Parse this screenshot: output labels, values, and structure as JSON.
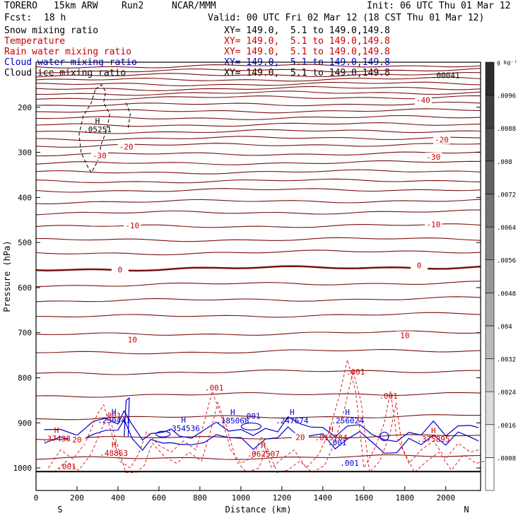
{
  "header": {
    "model": "TORERO",
    "resolution": "15km ARW",
    "run": "Run2",
    "org": "NCAR/MMM",
    "init": "Init: 06 UTC Thu 01 Mar 12",
    "fcst_label": "Fcst:",
    "fcst_value": "18 h",
    "valid": "Valid: 00 UTC Fri 02 Mar 12 (18 CST Thu 01 Mar 12)"
  },
  "legend": [
    {
      "label": "Snow mixing ratio",
      "xy": "XY= 149.0,  5.1 to 149.0,149.8",
      "color": "#000000"
    },
    {
      "label": "Temperature",
      "xy": "XY= 149.0,  5.1 to 149.0,149.8",
      "color": "#cc0000"
    },
    {
      "label": "Rain water mixing ratio",
      "xy": "XY= 149.0,  5.1 to 149.0,149.8",
      "color": "#cc0000"
    },
    {
      "label": "Cloud water mixing ratio",
      "xy": "XY= 149.0,  5.1 to 149.0,149.8",
      "color": "#0000cc"
    },
    {
      "label": "Cloud ice mixing ratio",
      "xy": "XY= 149.0,  5.1 to 149.0,149.8",
      "color": "#000000"
    }
  ],
  "chart_data": {
    "type": "cross-section",
    "xlabel": "Distance (km)",
    "ylabel": "Pressure (hPa)",
    "xlim": [
      0,
      2170
    ],
    "ylim": [
      1050,
      100
    ],
    "x_ticks": [
      0,
      200,
      400,
      600,
      800,
      1000,
      1200,
      1400,
      1600,
      1800,
      2000
    ],
    "y_ticks": [
      200,
      300,
      400,
      500,
      600,
      700,
      800,
      900,
      1000
    ],
    "left_end_label": "S",
    "right_end_label": "N",
    "colorbar": {
      "unit": "g kg⁻¹",
      "ticks": [
        ".0008",
        ".0016",
        ".0024",
        ".0032",
        ".004",
        ".0048",
        ".0056",
        ".0064",
        ".0072",
        ".008",
        ".0088",
        ".0096"
      ]
    },
    "temperature_isotherms": [
      {
        "value": "-40",
        "labels": [
          [
            1890,
            184
          ]
        ]
      },
      {
        "value": "-30",
        "labels": [
          [
            310,
            307
          ],
          [
            1940,
            310
          ]
        ]
      },
      {
        "value": "-20",
        "labels": [
          [
            440,
            287
          ],
          [
            1980,
            272
          ]
        ]
      },
      {
        "value": "-10",
        "labels": [
          [
            470,
            462
          ],
          [
            1940,
            460
          ]
        ]
      },
      {
        "value": "0",
        "labels": [
          [
            410,
            560
          ],
          [
            1870,
            551
          ]
        ]
      },
      {
        "value": "10",
        "labels": [
          [
            470,
            715
          ],
          [
            1800,
            706
          ]
        ]
      },
      {
        "value": "20",
        "labels": [
          [
            200,
            937
          ],
          [
            1290,
            932
          ]
        ]
      }
    ],
    "maxima_labels": [
      {
        "text": ".05251",
        "series": "Snow mixing ratio",
        "x": 300,
        "p": 255
      },
      {
        "text": ".230441",
        "series": "Cloud water mixing ratio",
        "x": 380,
        "p": 900
      },
      {
        "text": ".354536",
        "series": "Cloud water mixing ratio",
        "x": 720,
        "p": 918
      },
      {
        "text": ".185068",
        "series": "Cloud water mixing ratio",
        "x": 960,
        "p": 901
      },
      {
        "text": ".247674",
        "series": "Cloud water mixing ratio",
        "x": 1250,
        "p": 901
      },
      {
        "text": ".256024",
        "series": "Cloud water mixing ratio",
        "x": 1520,
        "p": 901
      },
      {
        "text": ".37438",
        "series": "Rain water mixing ratio",
        "x": 100,
        "p": 941
      },
      {
        "text": ".48863",
        "series": "Rain water mixing ratio",
        "x": 380,
        "p": 973
      },
      {
        "text": ".062507",
        "series": "Rain water mixing ratio",
        "x": 1110,
        "p": 975
      },
      {
        "text": ".015784",
        "series": "Rain water mixing ratio",
        "x": 1440,
        "p": 939
      },
      {
        "text": ".375895",
        "series": "Rain water mixing ratio",
        "x": 1940,
        "p": 942
      }
    ],
    "contour_labels": [
      {
        "text": ".001",
        "color": "#cc0000",
        "x": 1560,
        "p": 793
      },
      {
        "text": ".001",
        "color": "#cc0000",
        "x": 870,
        "p": 828
      },
      {
        "text": ".001",
        "color": "#cc0000",
        "x": 1720,
        "p": 846
      },
      {
        "text": ".001",
        "color": "#cc0000",
        "x": 370,
        "p": 890
      },
      {
        "text": ".001",
        "color": "#0000cc",
        "x": 1050,
        "p": 891
      },
      {
        "text": ".001",
        "color": "#0000cc",
        "x": 1470,
        "p": 950
      },
      {
        "text": ".001",
        "color": "#0000cc",
        "x": 1530,
        "p": 995
      },
      {
        "text": ".001",
        "color": "#cc0000",
        "x": 150,
        "p": 1003
      },
      {
        "text": ".00041",
        "color": "#000000",
        "x": 2000,
        "p": 135
      }
    ]
  }
}
